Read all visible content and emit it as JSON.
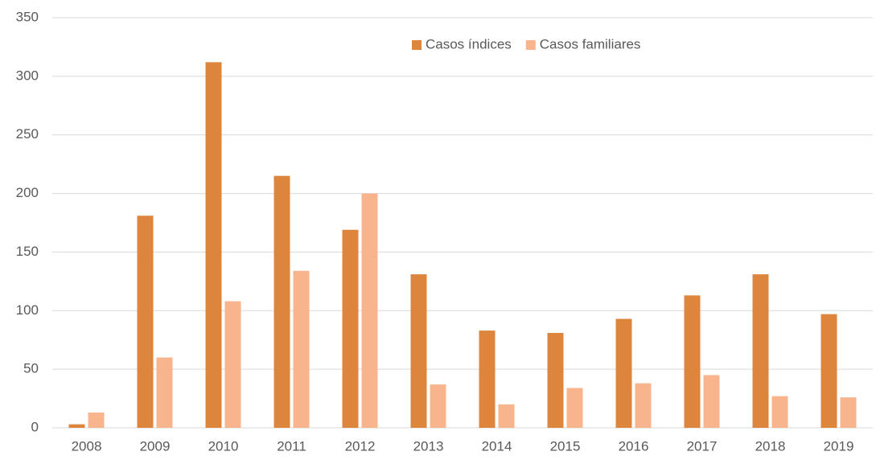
{
  "chart_data": {
    "type": "bar",
    "categories": [
      "2008",
      "2009",
      "2010",
      "2011",
      "2012",
      "2013",
      "2014",
      "2015",
      "2016",
      "2017",
      "2018",
      "2019"
    ],
    "series": [
      {
        "name": "Casos índices",
        "color": "#dd843d",
        "values": [
          3,
          181,
          312,
          215,
          169,
          131,
          83,
          81,
          93,
          113,
          131,
          97
        ]
      },
      {
        "name": "Casos familiares",
        "color": "#f8b48c",
        "values": [
          13,
          60,
          108,
          134,
          200,
          37,
          20,
          34,
          38,
          45,
          27,
          26
        ]
      }
    ],
    "ylim": [
      0,
      350
    ],
    "yticks": [
      0,
      50,
      100,
      150,
      200,
      250,
      300,
      350
    ],
    "grid": true,
    "legend": "top"
  }
}
